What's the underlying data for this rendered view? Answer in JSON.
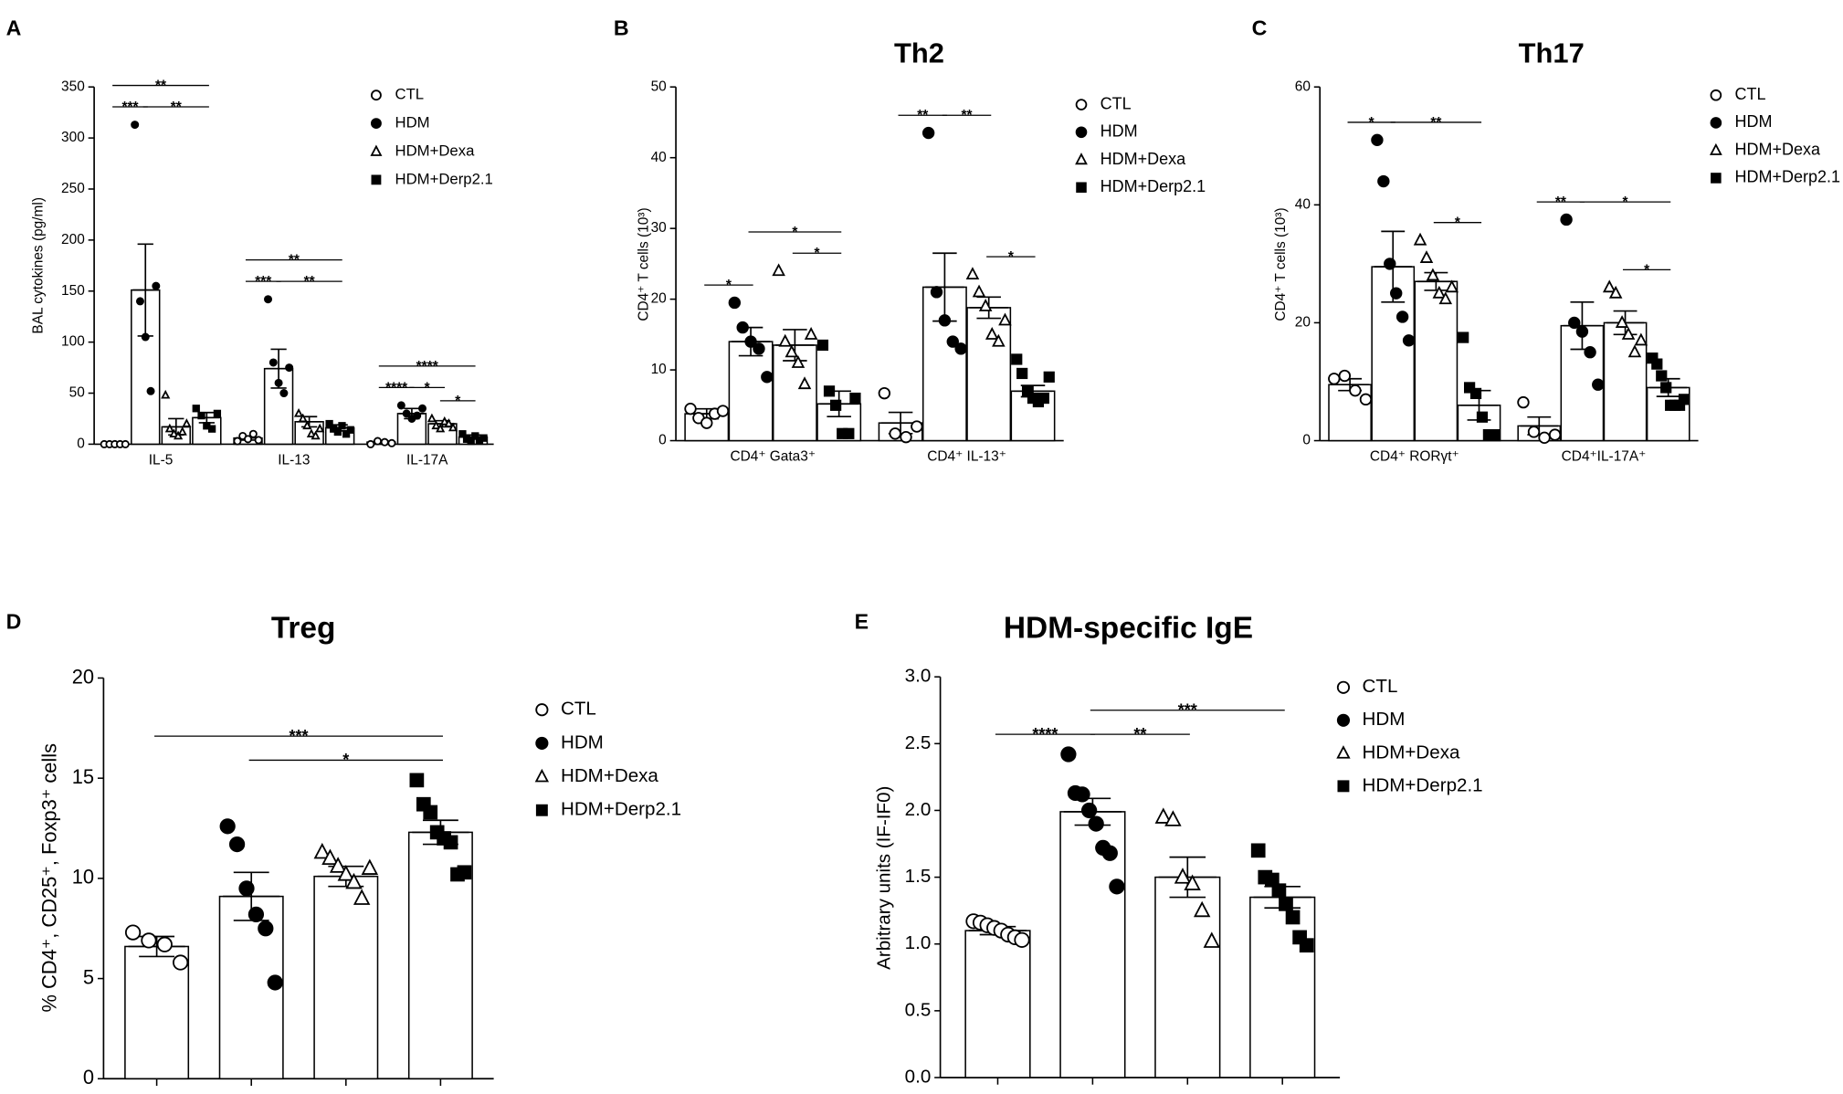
{
  "chart_data": [
    {
      "type": "bar",
      "panel_label": "A",
      "ylabel": "BAL cytokines (pg/ml)",
      "categories": [
        "IL-5",
        "IL-13",
        "IL-17A"
      ],
      "ylim": [
        0,
        350
      ],
      "yticks": [
        0,
        50,
        100,
        150,
        200,
        250,
        300,
        350
      ],
      "series": [
        {
          "name": "CTL",
          "color": "#000000",
          "marker": "open-circle",
          "values": [
            0,
            6,
            2
          ],
          "errors": [
            0,
            2,
            1
          ],
          "points": [
            [
              0,
              0,
              0,
              0,
              0
            ],
            [
              3,
              8,
              5,
              10,
              4
            ],
            [
              0,
              3,
              2,
              1
            ]
          ]
        },
        {
          "name": "HDM",
          "color": "#000000",
          "marker": "filled-circle",
          "values": [
            151,
            74,
            30
          ],
          "errors": [
            45,
            19,
            5
          ],
          "points": [
            [
              313,
              140,
              105,
              52,
              155
            ],
            [
              142,
              80,
              60,
              50,
              75
            ],
            [
              38,
              30,
              25,
              28,
              35
            ]
          ]
        },
        {
          "name": "HDM+Dexa",
          "color": "#000000",
          "marker": "open-triangle",
          "values": [
            17,
            22,
            20
          ],
          "errors": [
            8,
            5,
            3
          ],
          "points": [
            [
              48,
              15,
              10,
              8,
              12,
              20
            ],
            [
              30,
              25,
              18,
              10,
              8,
              15
            ],
            [
              25,
              18,
              15,
              22,
              20,
              16
            ]
          ]
        },
        {
          "name": "HDM+Derp2.1",
          "color": "#000000",
          "marker": "filled-square",
          "values": [
            26,
            16,
            7
          ],
          "errors": [
            5,
            3,
            2
          ],
          "points": [
            [
              35,
              28,
              18,
              15,
              30
            ],
            [
              20,
              15,
              12,
              18,
              10,
              14
            ],
            [
              10,
              5,
              3,
              8,
              4,
              6
            ]
          ]
        }
      ],
      "annotations": [
        {
          "text": "***",
          "category": 0,
          "from": 0,
          "to": 1
        },
        {
          "text": "**",
          "category": 0,
          "from": 1,
          "to": 3
        },
        {
          "text": "**",
          "category": 0,
          "from": 0,
          "to": 3
        },
        {
          "text": "***",
          "category": 1,
          "from": 0,
          "to": 1
        },
        {
          "text": "**",
          "category": 1,
          "from": 1,
          "to": 3
        },
        {
          "text": "**",
          "category": 1,
          "from": 0,
          "to": 3
        },
        {
          "text": "****",
          "category": 2,
          "from": 0,
          "to": 1
        },
        {
          "text": "*",
          "category": 2,
          "from": 1,
          "to": 2
        },
        {
          "text": "*",
          "category": 2,
          "from": 2,
          "to": 3
        },
        {
          "text": "****",
          "category": 2,
          "from": 0,
          "to": 3
        }
      ]
    },
    {
      "type": "bar",
      "panel_label": "B",
      "title": "Th2",
      "ylabel": "CD4⁺ T cells (10³)",
      "categories": [
        "CD4⁺ Gata3⁺",
        "CD4⁺ IL-13⁺"
      ],
      "ylim": [
        0,
        50
      ],
      "yticks": [
        0,
        10,
        20,
        30,
        40,
        50
      ],
      "series": [
        {
          "name": "CTL",
          "color": "#000000",
          "marker": "open-circle",
          "values": [
            3.8,
            2.5
          ],
          "errors": [
            0.7,
            1.5
          ],
          "points": [
            [
              4.5,
              3.2,
              2.5,
              3.8,
              4.2
            ],
            [
              6.7,
              1,
              0.5,
              2
            ]
          ]
        },
        {
          "name": "HDM",
          "color": "#000000",
          "marker": "filled-circle",
          "values": [
            14,
            21.7
          ],
          "errors": [
            2,
            4.8
          ],
          "points": [
            [
              19.5,
              16,
              14,
              13,
              9
            ],
            [
              43.5,
              21,
              17,
              14,
              13
            ]
          ]
        },
        {
          "name": "HDM+Dexa",
          "color": "#000000",
          "marker": "open-triangle",
          "values": [
            13.5,
            18.8
          ],
          "errors": [
            2.2,
            1.5
          ],
          "points": [
            [
              24,
              14,
              12.5,
              11,
              8,
              15
            ],
            [
              23.5,
              21,
              19,
              15,
              14,
              17
            ]
          ]
        },
        {
          "name": "HDM+Derp2.1",
          "color": "#000000",
          "marker": "filled-square",
          "values": [
            5.2,
            7
          ],
          "errors": [
            1.8,
            0.8
          ],
          "points": [
            [
              13.5,
              7,
              5,
              1,
              1,
              6
            ],
            [
              11.5,
              9.5,
              7,
              6,
              5.5,
              6,
              9
            ]
          ]
        }
      ],
      "annotations": [
        {
          "text": "*",
          "category": 0,
          "from": 0,
          "to": 1
        },
        {
          "text": "*",
          "category": 0,
          "from": 2,
          "to": 3
        },
        {
          "text": "*",
          "category": 0,
          "from": 1,
          "to": 3
        },
        {
          "text": "**",
          "category": 1,
          "from": 0,
          "to": 1
        },
        {
          "text": "**",
          "category": 1,
          "from": 1,
          "to": 2
        },
        {
          "text": "*",
          "category": 1,
          "from": 2,
          "to": 3
        }
      ]
    },
    {
      "type": "bar",
      "panel_label": "C",
      "title": "Th17",
      "ylabel": "CD4⁺ T cells (10³)",
      "categories": [
        "CD4⁺ RORγt⁺",
        "CD4⁺IL-17A⁺"
      ],
      "ylim": [
        0,
        60
      ],
      "yticks": [
        0,
        20,
        40,
        60
      ],
      "series": [
        {
          "name": "CTL",
          "color": "#000000",
          "marker": "open-circle",
          "values": [
            9.5,
            2.5
          ],
          "errors": [
            1,
            1.5
          ],
          "points": [
            [
              10.5,
              11,
              8.5,
              7
            ],
            [
              6.5,
              1.5,
              0.5,
              1
            ]
          ]
        },
        {
          "name": "HDM",
          "color": "#000000",
          "marker": "filled-circle",
          "values": [
            29.5,
            19.5
          ],
          "errors": [
            6,
            4
          ],
          "points": [
            [
              51,
              44,
              30,
              25,
              21,
              17
            ],
            [
              37.5,
              20,
              18.5,
              15,
              9.5
            ]
          ]
        },
        {
          "name": "HDM+Dexa",
          "color": "#000000",
          "marker": "open-triangle",
          "values": [
            27,
            20
          ],
          "errors": [
            1.5,
            2
          ],
          "points": [
            [
              34,
              31,
              28,
              25,
              24,
              26
            ],
            [
              26,
              25,
              20,
              18,
              15,
              17
            ]
          ]
        },
        {
          "name": "HDM+Derp2.1",
          "color": "#000000",
          "marker": "filled-square",
          "values": [
            6,
            9
          ],
          "errors": [
            2.5,
            1.5
          ],
          "points": [
            [
              17.5,
              9,
              8,
              4,
              1,
              1
            ],
            [
              14,
              13,
              11,
              9,
              6,
              6,
              6,
              7
            ]
          ]
        }
      ],
      "annotations": [
        {
          "text": "*",
          "category": 0,
          "from": 0,
          "to": 1
        },
        {
          "text": "*",
          "category": 0,
          "from": 2,
          "to": 3
        },
        {
          "text": "**",
          "category": 0,
          "from": 1,
          "to": 3
        },
        {
          "text": "**",
          "category": 1,
          "from": 0,
          "to": 1
        },
        {
          "text": "*",
          "category": 1,
          "from": 2,
          "to": 3
        },
        {
          "text": "*",
          "category": 1,
          "from": 1,
          "to": 3
        }
      ]
    },
    {
      "type": "bar",
      "panel_label": "D",
      "title": "Treg",
      "ylabel": "% CD4⁺, CD25⁺, Foxp3⁺ cells",
      "categories": [
        null
      ],
      "ylim": [
        0,
        20
      ],
      "yticks": [
        0,
        5,
        10,
        15,
        20
      ],
      "series": [
        {
          "name": "CTL",
          "color": "#000000",
          "marker": "open-circle",
          "values": [
            6.6
          ],
          "errors": [
            0.5
          ],
          "points": [
            [
              7.3,
              6.9,
              6.7,
              5.8
            ]
          ]
        },
        {
          "name": "HDM",
          "color": "#000000",
          "marker": "filled-circle",
          "values": [
            9.1
          ],
          "errors": [
            1.2
          ],
          "points": [
            [
              12.6,
              11.7,
              9.5,
              8.2,
              7.5,
              4.8
            ]
          ]
        },
        {
          "name": "HDM+Dexa",
          "color": "#000000",
          "marker": "open-triangle",
          "values": [
            10.1
          ],
          "errors": [
            0.5
          ],
          "points": [
            [
              11.3,
              11,
              10.6,
              10.2,
              9.8,
              9,
              10.5
            ]
          ]
        },
        {
          "name": "HDM+Derp2.1",
          "color": "#000000",
          "marker": "filled-square",
          "values": [
            12.3
          ],
          "errors": [
            0.6
          ],
          "points": [
            [
              14.9,
              13.7,
              13.3,
              12.3,
              12,
              11.8,
              10.2,
              10.3
            ]
          ]
        }
      ],
      "annotations": [
        {
          "text": "*",
          "category": 0,
          "from": 1,
          "to": 3
        },
        {
          "text": "***",
          "category": 0,
          "from": 0,
          "to": 3
        }
      ]
    },
    {
      "type": "bar",
      "panel_label": "E",
      "title": "HDM-specific IgE",
      "ylabel": "Arbitrary units (IF-IF0)",
      "categories": [
        null
      ],
      "ylim": [
        0,
        3
      ],
      "yticks": [
        {
          "value": 0,
          "label": "0.0"
        },
        0.5,
        {
          "value": 1,
          "label": "1.0"
        },
        1.5,
        {
          "value": 2,
          "label": "2.0"
        },
        2.5,
        {
          "value": 3,
          "label": "3.0"
        }
      ],
      "series": [
        {
          "name": "CTL",
          "color": "#000000",
          "marker": "open-circle",
          "values": [
            1.1
          ],
          "errors": [
            0.03
          ],
          "points": [
            [
              1.17,
              1.16,
              1.14,
              1.12,
              1.1,
              1.07,
              1.05,
              1.03
            ]
          ]
        },
        {
          "name": "HDM",
          "color": "#000000",
          "marker": "filled-circle",
          "values": [
            1.99
          ],
          "errors": [
            0.1
          ],
          "points": [
            [
              2.42,
              2.13,
              2.12,
              2,
              1.9,
              1.72,
              1.68,
              1.43
            ]
          ]
        },
        {
          "name": "HDM+Dexa",
          "color": "#000000",
          "marker": "open-triangle",
          "values": [
            1.5
          ],
          "errors": [
            0.15
          ],
          "points": [
            [
              1.95,
              1.93,
              1.5,
              1.45,
              1.25,
              1.02
            ]
          ]
        },
        {
          "name": "HDM+Derp2.1",
          "color": "#000000",
          "marker": "filled-square",
          "values": [
            1.35
          ],
          "errors": [
            0.08
          ],
          "points": [
            [
              1.7,
              1.5,
              1.48,
              1.4,
              1.3,
              1.2,
              1.05,
              0.99
            ]
          ]
        }
      ],
      "annotations": [
        {
          "text": "****",
          "category": 0,
          "from": 0,
          "to": 1
        },
        {
          "text": "**",
          "category": 0,
          "from": 1,
          "to": 2
        },
        {
          "text": "***",
          "category": 0,
          "from": 1,
          "to": 3
        }
      ]
    }
  ]
}
